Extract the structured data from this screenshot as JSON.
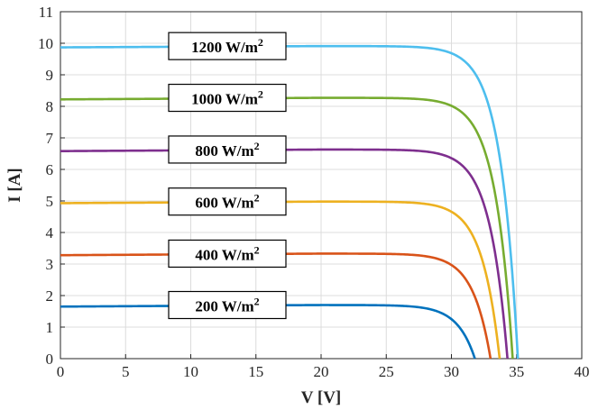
{
  "chart_data": {
    "type": "line",
    "title": "",
    "xlabel": "V [V]",
    "ylabel": "I [A]",
    "xlim": [
      0,
      40
    ],
    "ylim": [
      0,
      11
    ],
    "xticks": [
      0,
      5,
      10,
      15,
      20,
      25,
      30,
      35,
      40
    ],
    "yticks": [
      0,
      1,
      2,
      3,
      4,
      5,
      6,
      7,
      8,
      9,
      10,
      11
    ],
    "grid": true,
    "series": [
      {
        "name": "200 W/m2",
        "color": "#0072BD",
        "isc": 1.65,
        "imax": 1.7,
        "voc": 31.8,
        "points": [
          [
            0,
            1.65
          ],
          [
            10,
            1.68
          ],
          [
            20,
            1.7
          ],
          [
            25,
            1.69
          ],
          [
            28,
            1.55
          ],
          [
            30,
            1.05
          ],
          [
            31.8,
            0
          ]
        ]
      },
      {
        "name": "400 W/m2",
        "color": "#D95319",
        "isc": 3.28,
        "imax": 3.33,
        "voc": 33.0,
        "points": [
          [
            0,
            3.28
          ],
          [
            10,
            3.31
          ],
          [
            20,
            3.33
          ],
          [
            26,
            3.3
          ],
          [
            29,
            3.0
          ],
          [
            31,
            2.2
          ],
          [
            33.0,
            0
          ]
        ]
      },
      {
        "name": "600 W/m2",
        "color": "#EDB120",
        "isc": 4.93,
        "imax": 4.98,
        "voc": 33.7,
        "points": [
          [
            0,
            4.93
          ],
          [
            10,
            4.96
          ],
          [
            20,
            4.98
          ],
          [
            27,
            4.9
          ],
          [
            30,
            4.3
          ],
          [
            32,
            3.0
          ],
          [
            33.7,
            0
          ]
        ]
      },
      {
        "name": "800 W/m2",
        "color": "#7E2F8E",
        "isc": 6.58,
        "imax": 6.63,
        "voc": 34.3,
        "points": [
          [
            0,
            6.58
          ],
          [
            10,
            6.61
          ],
          [
            20,
            6.63
          ],
          [
            27,
            6.55
          ],
          [
            30,
            5.9
          ],
          [
            32.5,
            4.0
          ],
          [
            34.3,
            0
          ]
        ]
      },
      {
        "name": "1000 W/m2",
        "color": "#77AC30",
        "isc": 8.22,
        "imax": 8.27,
        "voc": 34.7,
        "points": [
          [
            0,
            8.22
          ],
          [
            10,
            8.25
          ],
          [
            20,
            8.27
          ],
          [
            27,
            8.2
          ],
          [
            30,
            7.5
          ],
          [
            33,
            4.5
          ],
          [
            34.7,
            0
          ]
        ]
      },
      {
        "name": "1200 W/m2",
        "color": "#4DBEEE",
        "isc": 9.87,
        "imax": 9.91,
        "voc": 35.1,
        "points": [
          [
            0,
            9.87
          ],
          [
            10,
            9.9
          ],
          [
            20,
            9.91
          ],
          [
            27,
            9.8
          ],
          [
            30,
            9.1
          ],
          [
            33,
            6.0
          ],
          [
            35.1,
            0
          ]
        ]
      }
    ],
    "annotations": [
      {
        "value": "1200",
        "unit": "W/m",
        "sup": "2",
        "y": 9.91
      },
      {
        "value": "1000",
        "unit": "W/m",
        "sup": "2",
        "y": 8.27
      },
      {
        "value": "800",
        "unit": "W/m",
        "sup": "2",
        "y": 6.63
      },
      {
        "value": "600",
        "unit": "W/m",
        "sup": "2",
        "y": 4.98
      },
      {
        "value": "400",
        "unit": "W/m",
        "sup": "2",
        "y": 3.33
      },
      {
        "value": "200",
        "unit": "W/m",
        "sup": "2",
        "y": 1.7
      }
    ]
  }
}
